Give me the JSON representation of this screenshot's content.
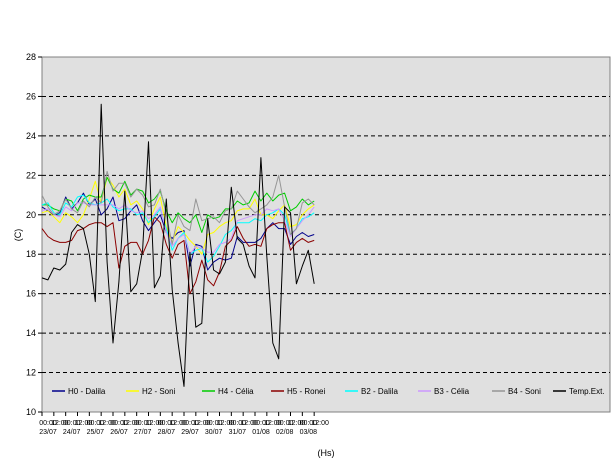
{
  "chart_data": {
    "type": "line",
    "ylabel": "(C)",
    "xlabel": "(Hs)",
    "ylim": [
      10,
      28
    ],
    "y_ticks": [
      10,
      12,
      14,
      16,
      18,
      20,
      22,
      24,
      26,
      28
    ],
    "grid": "horizontal dashed",
    "legend_position": "bottom-inside",
    "x_ticks": [
      {
        "time": "00:00",
        "date": "23/07"
      },
      {
        "time": "12:00",
        "date": ""
      },
      {
        "time": "00:00",
        "date": "24/07"
      },
      {
        "time": "12:00",
        "date": ""
      },
      {
        "time": "00:00",
        "date": "25/07"
      },
      {
        "time": "12:00",
        "date": ""
      },
      {
        "time": "00:00",
        "date": "26/07"
      },
      {
        "time": "12:00",
        "date": ""
      },
      {
        "time": "00:00",
        "date": "27/07"
      },
      {
        "time": "12:00",
        "date": ""
      },
      {
        "time": "00:00",
        "date": "28/07"
      },
      {
        "time": "12:00",
        "date": ""
      },
      {
        "time": "00:00",
        "date": "29/07"
      },
      {
        "time": "12:00",
        "date": ""
      },
      {
        "time": "00:00",
        "date": "30/07"
      },
      {
        "time": "12:00",
        "date": ""
      },
      {
        "time": "00:00",
        "date": "31/07"
      },
      {
        "time": "12:00",
        "date": ""
      },
      {
        "time": "00:00",
        "date": "01/08"
      },
      {
        "time": "12:00",
        "date": ""
      },
      {
        "time": "00:00",
        "date": "02/08"
      },
      {
        "time": "12:00",
        "date": ""
      },
      {
        "time": "00:00",
        "date": "03/08"
      },
      {
        "time": "12:00",
        "date": ""
      }
    ],
    "x_hours": [
      0,
      6,
      12,
      18,
      24,
      30,
      36,
      42,
      48,
      54,
      60,
      66,
      72,
      78,
      84,
      90,
      96,
      102,
      108,
      114,
      120,
      126,
      132,
      138,
      144,
      150,
      156,
      162,
      168,
      174,
      180,
      186,
      192,
      198,
      204,
      210,
      216,
      222,
      228,
      234,
      240,
      246,
      252,
      258,
      264,
      270,
      276
    ],
    "series": [
      {
        "name": "H0 - Dalila",
        "color": "#00008b",
        "values": [
          20.4,
          20.2,
          20.0,
          20.1,
          20.9,
          20.3,
          20.6,
          21.1,
          20.5,
          20.8,
          20.0,
          20.3,
          20.9,
          19.7,
          19.8,
          20.2,
          20.5,
          19.7,
          19.2,
          19.6,
          20.0,
          19.1,
          18.8,
          19.1,
          19.2,
          17.4,
          18.5,
          18.4,
          17.2,
          17.6,
          17.8,
          17.7,
          17.8,
          18.9,
          18.6,
          18.6,
          18.6,
          18.8,
          19.3,
          19.6,
          19.3,
          19.3,
          18.5,
          18.9,
          19.1,
          18.9,
          19.0
        ]
      },
      {
        "name": "H2 - Soni",
        "color": "#ffff00",
        "values": [
          20.1,
          20.2,
          19.9,
          19.6,
          20.1,
          19.9,
          19.6,
          20.0,
          20.8,
          21.7,
          20.6,
          21.9,
          21.5,
          20.9,
          21.3,
          20.5,
          20.7,
          20.3,
          19.5,
          20.3,
          20.9,
          19.4,
          18.6,
          19.4,
          19.1,
          18.7,
          18.4,
          18.0,
          19.0,
          19.1,
          19.4,
          19.6,
          19.7,
          20.2,
          20.3,
          20.3,
          20.8,
          20.0,
          20.0,
          19.8,
          20.2,
          20.5,
          19.4,
          19.5,
          20.0,
          20.3,
          20.5
        ]
      },
      {
        "name": "H4 - Célia",
        "color": "#00cc00",
        "values": [
          20.5,
          20.5,
          20.3,
          20.2,
          20.8,
          20.7,
          20.2,
          20.8,
          21.0,
          20.9,
          20.9,
          21.9,
          21.3,
          21.1,
          21.7,
          21.0,
          21.3,
          21.2,
          20.6,
          20.8,
          21.2,
          20.2,
          19.6,
          20.1,
          19.8,
          19.6,
          20.0,
          19.1,
          20.0,
          19.8,
          19.9,
          20.3,
          20.3,
          20.7,
          20.5,
          20.6,
          21.2,
          20.7,
          21.1,
          20.7,
          21.0,
          21.1,
          20.2,
          20.4,
          20.8,
          20.5,
          20.7
        ]
      },
      {
        "name": "H5 - Ronei",
        "color": "#8b0000",
        "values": [
          19.3,
          18.9,
          18.7,
          18.6,
          18.6,
          18.7,
          19.2,
          19.3,
          19.5,
          19.6,
          19.6,
          19.4,
          19.6,
          17.3,
          18.4,
          18.6,
          18.6,
          18.0,
          18.7,
          19.9,
          19.6,
          18.5,
          17.8,
          18.5,
          18.7,
          16.0,
          16.6,
          17.7,
          16.7,
          16.4,
          17.1,
          18.4,
          18.7,
          19.4,
          18.8,
          18.4,
          18.5,
          18.4,
          19.3,
          19.5,
          19.6,
          19.6,
          18.2,
          18.6,
          18.8,
          18.6,
          18.7
        ]
      },
      {
        "name": "B2 - Dalila",
        "color": "#00ffff",
        "values": [
          20.5,
          20.6,
          20.1,
          20.0,
          20.6,
          20.4,
          20.9,
          21.0,
          20.6,
          20.5,
          20.6,
          20.8,
          20.4,
          20.2,
          20.3,
          20.3,
          20.0,
          20.1,
          19.6,
          19.9,
          20.3,
          19.3,
          18.2,
          18.8,
          19.1,
          18.0,
          18.2,
          18.3,
          17.6,
          17.9,
          18.4,
          19.0,
          19.2,
          19.6,
          19.6,
          19.6,
          19.8,
          19.7,
          20.0,
          20.1,
          20.3,
          20.0,
          19.0,
          19.3,
          19.8,
          19.9,
          20.1
        ]
      },
      {
        "name": "B3 - Célia",
        "color": "#cc99ff",
        "values": [
          20.2,
          20.3,
          20.0,
          19.9,
          20.4,
          20.2,
          20.6,
          20.6,
          20.5,
          20.5,
          20.5,
          20.5,
          20.5,
          20.3,
          20.5,
          20.2,
          20.1,
          20.2,
          19.8,
          20.0,
          20.4,
          19.1,
          18.4,
          18.8,
          19.0,
          18.0,
          18.4,
          18.3,
          18.1,
          18.1,
          18.5,
          18.6,
          18.8,
          19.7,
          19.8,
          19.9,
          20.0,
          20.0,
          20.3,
          20.2,
          20.3,
          19.7,
          18.9,
          19.3,
          19.7,
          20.0,
          20.4
        ]
      },
      {
        "name": "B4 - Soni",
        "color": "#969696",
        "values": [
          21.0,
          20.4,
          20.0,
          20.2,
          20.8,
          20.3,
          20.1,
          20.7,
          20.4,
          20.9,
          20.6,
          22.2,
          21.2,
          21.6,
          21.6,
          20.9,
          21.3,
          21.0,
          20.4,
          20.5,
          21.3,
          20.0,
          18.5,
          20.0,
          19.4,
          19.2,
          20.8,
          19.7,
          19.8,
          19.9,
          19.6,
          20.2,
          20.3,
          21.2,
          20.8,
          20.4,
          20.1,
          20.3,
          20.5,
          20.9,
          22.0,
          20.4,
          19.0,
          19.3,
          20.6,
          20.8,
          20.5
        ]
      },
      {
        "name": "Temp.Ext.",
        "color": "#000000",
        "values": [
          16.8,
          16.7,
          17.3,
          17.2,
          17.5,
          19.1,
          19.5,
          19.3,
          18.0,
          15.6,
          25.6,
          17.6,
          13.5,
          16.6,
          21.2,
          16.1,
          16.5,
          18.2,
          23.7,
          16.3,
          16.9,
          20.8,
          16.2,
          13.5,
          11.3,
          18.1,
          14.3,
          14.5,
          19.8,
          17.2,
          17.0,
          17.6,
          21.4,
          18.8,
          18.5,
          17.4,
          16.8,
          22.9,
          17.9,
          13.5,
          12.7,
          20.4,
          20.1,
          16.5,
          17.4,
          18.2,
          16.5
        ]
      }
    ]
  }
}
